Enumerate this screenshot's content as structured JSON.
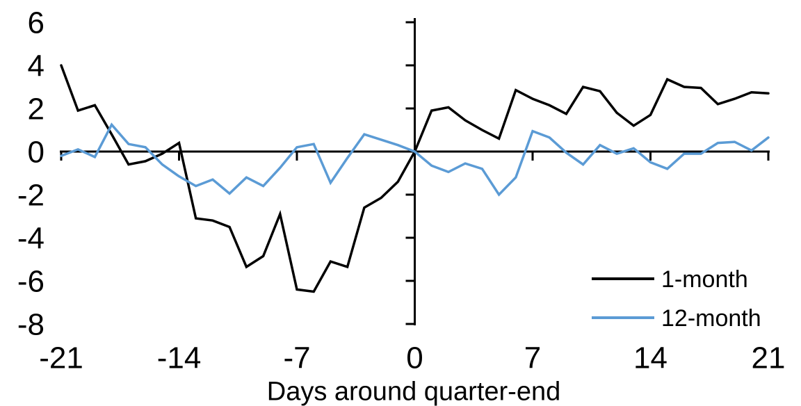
{
  "chart_data": {
    "type": "line",
    "title": "",
    "xlabel": "Days around quarter-end",
    "ylabel": "",
    "x": [
      -21,
      -20,
      -19,
      -18,
      -17,
      -16,
      -15,
      -14,
      -13,
      -12,
      -11,
      -10,
      -9,
      -8,
      -7,
      -6,
      -5,
      -4,
      -3,
      -2,
      -1,
      0,
      1,
      2,
      3,
      4,
      5,
      6,
      7,
      8,
      9,
      10,
      11,
      12,
      13,
      14,
      15,
      16,
      17,
      18,
      19,
      20,
      21
    ],
    "series": [
      {
        "name": "1-month",
        "color": "#000000",
        "values": [
          4.0,
          1.9,
          2.15,
          0.8,
          -0.6,
          -0.45,
          -0.1,
          0.4,
          -3.1,
          -3.2,
          -3.5,
          -5.35,
          -4.85,
          -2.9,
          -6.4,
          -6.5,
          -5.1,
          -5.35,
          -2.6,
          -2.15,
          -1.4,
          0.0,
          1.9,
          2.05,
          1.45,
          1.0,
          0.6,
          2.85,
          2.45,
          2.15,
          1.75,
          3.0,
          2.8,
          1.8,
          1.2,
          1.7,
          3.35,
          3.0,
          2.95,
          2.2,
          2.45,
          2.75,
          2.7
        ]
      },
      {
        "name": "12-month",
        "color": "#5B9BD5",
        "values": [
          -0.2,
          0.1,
          -0.25,
          1.25,
          0.35,
          0.2,
          -0.6,
          -1.15,
          -1.6,
          -1.3,
          -1.95,
          -1.2,
          -1.6,
          -0.75,
          0.2,
          0.35,
          -1.45,
          -0.3,
          0.8,
          0.55,
          0.3,
          0.0,
          -0.65,
          -0.95,
          -0.55,
          -0.8,
          -2.0,
          -1.2,
          0.95,
          0.65,
          -0.05,
          -0.6,
          0.3,
          -0.1,
          0.15,
          -0.5,
          -0.8,
          -0.1,
          -0.1,
          0.4,
          0.45,
          0.05,
          0.65
        ]
      }
    ],
    "xticks": [
      -21,
      -14,
      -7,
      0,
      7,
      14,
      21
    ],
    "yticks": [
      -8,
      -6,
      -4,
      -2,
      0,
      2,
      4,
      6
    ],
    "xlim": [
      -21,
      21
    ],
    "ylim": [
      -8,
      6
    ],
    "grid": false,
    "legend_position": "inside-bottom-right",
    "axis_color": "#000000",
    "background_color": "#ffffff"
  }
}
